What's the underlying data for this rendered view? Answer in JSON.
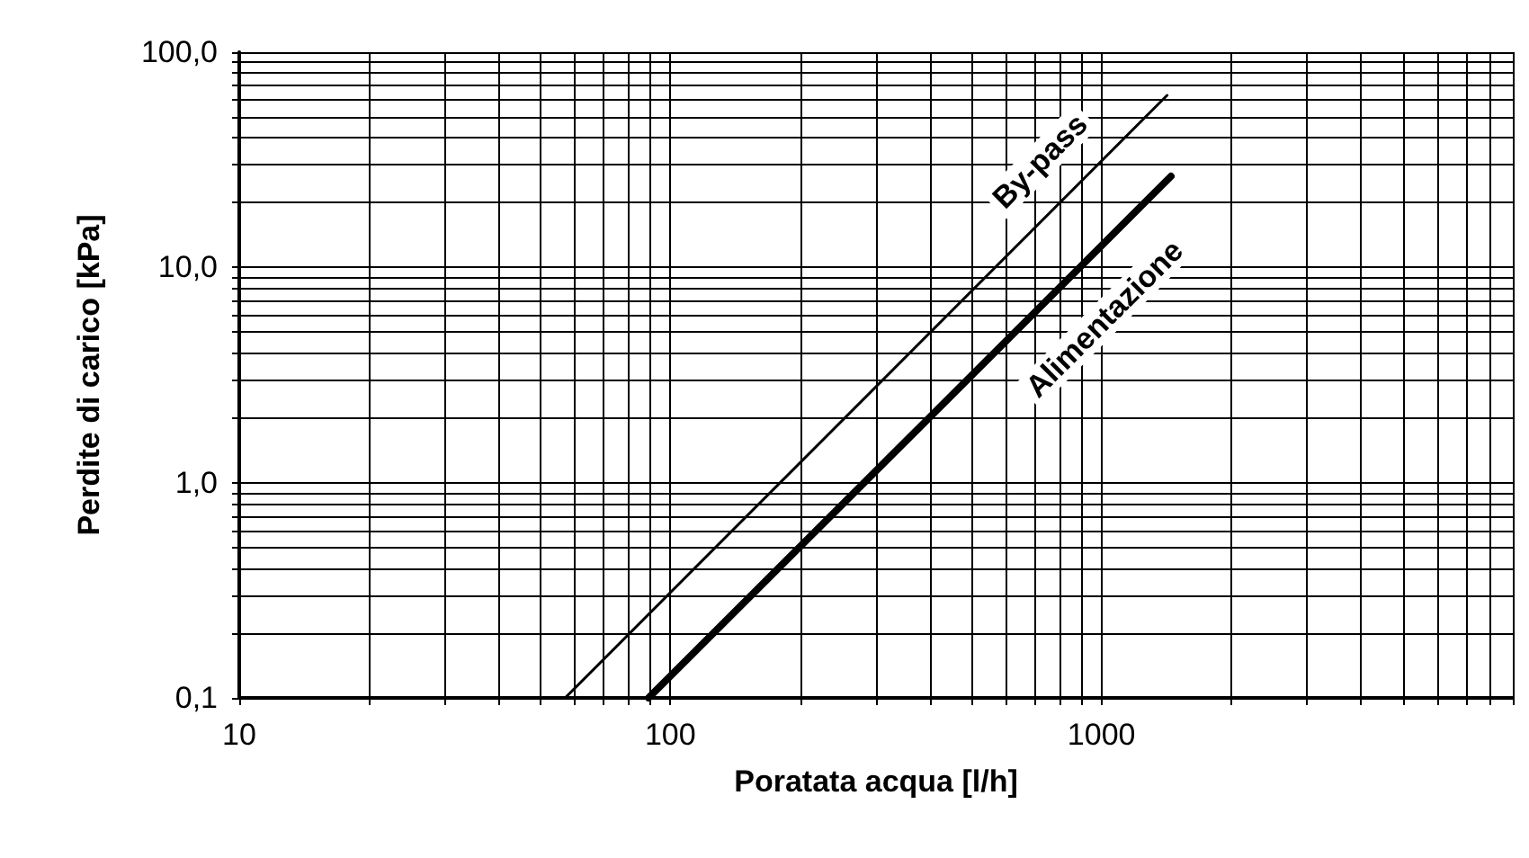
{
  "chart_data": {
    "type": "line",
    "xlabel": "Poratata acqua [l/h]",
    "ylabel": "Perdite di carico [kPa]",
    "log": "xy",
    "grid": true,
    "legend": false,
    "marker": "none",
    "line_style": "solid",
    "xlim": [
      10,
      9000
    ],
    "xticks": [
      10,
      100,
      1000
    ],
    "ylim": [
      0.1,
      100
    ],
    "yticks": [
      {
        "value": 0.1,
        "label": "0,1"
      },
      {
        "value": 1,
        "label": "1,0"
      },
      {
        "value": 10,
        "label": "10,0"
      },
      {
        "value": 100,
        "label": "100,0"
      }
    ],
    "series": [
      {
        "name": "By-pass",
        "color": "#000000",
        "x": [
          57,
          1420
        ],
        "values": [
          0.1,
          63
        ]
      },
      {
        "name": "Alimentazione",
        "color": "#000000",
        "x": [
          89,
          1450
        ],
        "values": [
          0.1,
          26.5
        ]
      }
    ]
  }
}
